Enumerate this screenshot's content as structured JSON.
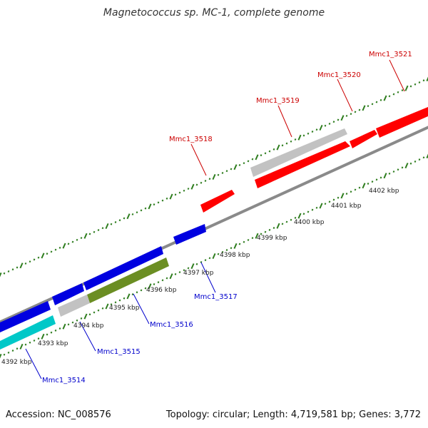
{
  "title": "Magnetococcus sp. MC-1, complete genome",
  "footer": {
    "accession": "Accession: NC_008576",
    "summary": "Topology: circular; Length: 4,719,581 bp; Genes: 3,772"
  },
  "colors": {
    "backbone": "#8a8a8a",
    "tick": "#2e7d1e",
    "forward_gene": "#ff0000",
    "reverse_gene": "#0000e0",
    "grey_gene": "#c2c2c2",
    "olive_gene": "#6b8e23",
    "cyan_gene": "#00c8c8",
    "label_red": "#cc0000",
    "label_blue": "#0000cc"
  },
  "ruler_labels": [
    {
      "text": "4392 kbp",
      "kbp": 4392
    },
    {
      "text": "4393 kbp",
      "kbp": 4393
    },
    {
      "text": "4394 kbp",
      "kbp": 4394
    },
    {
      "text": "4395 kbp",
      "kbp": 4395
    },
    {
      "text": "4396 kbp",
      "kbp": 4396
    },
    {
      "text": "4397 kbp",
      "kbp": 4397
    },
    {
      "text": "4398 kbp",
      "kbp": 4398
    },
    {
      "text": "4399 kbp",
      "kbp": 4399
    },
    {
      "text": "4400 kbp",
      "kbp": 4400
    },
    {
      "text": "4401 kbp",
      "kbp": 4401
    },
    {
      "text": "4402 kbp",
      "kbp": 4402
    }
  ],
  "gene_labels": [
    {
      "text": "Mmc1_3514",
      "strand": "reverse"
    },
    {
      "text": "Mmc1_3515",
      "strand": "reverse"
    },
    {
      "text": "Mmc1_3516",
      "strand": "reverse"
    },
    {
      "text": "Mmc1_3517",
      "strand": "reverse"
    },
    {
      "text": "Mmc1_3518",
      "strand": "forward"
    },
    {
      "text": "Mmc1_3519",
      "strand": "forward"
    },
    {
      "text": "Mmc1_3520",
      "strand": "forward"
    },
    {
      "text": "Mmc1_3521",
      "strand": "forward"
    }
  ]
}
